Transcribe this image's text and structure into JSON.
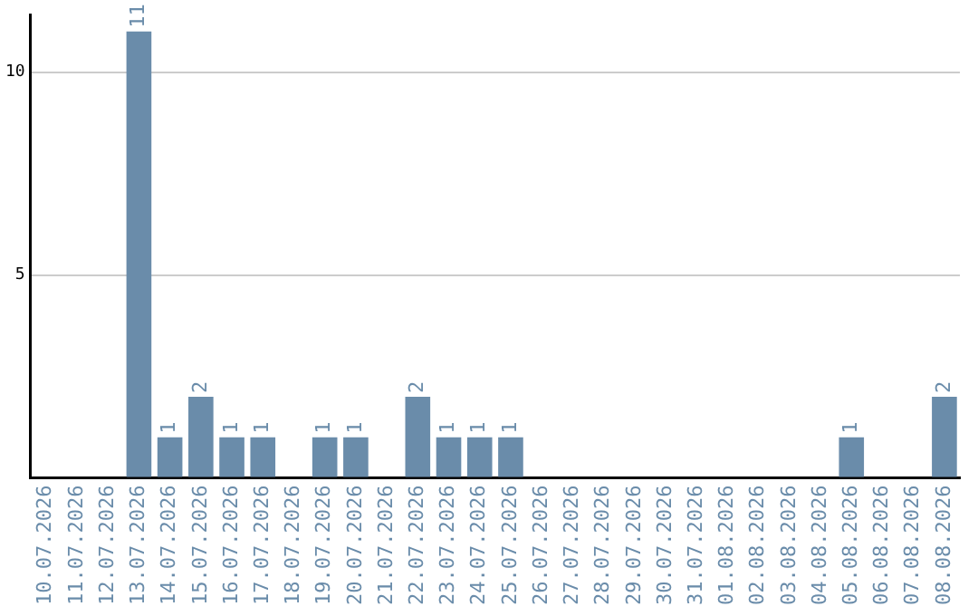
{
  "chart_data": {
    "type": "bar",
    "categories": [
      "10.07.2026",
      "11.07.2026",
      "12.07.2026",
      "13.07.2026",
      "14.07.2026",
      "15.07.2026",
      "16.07.2026",
      "17.07.2026",
      "18.07.2026",
      "19.07.2026",
      "20.07.2026",
      "21.07.2026",
      "22.07.2026",
      "23.07.2026",
      "24.07.2026",
      "25.07.2026",
      "26.07.2026",
      "27.07.2026",
      "28.07.2026",
      "29.07.2026",
      "30.07.2026",
      "31.07.2026",
      "01.08.2026",
      "02.08.2026",
      "03.08.2026",
      "04.08.2026",
      "05.08.2026",
      "06.08.2026",
      "07.08.2026",
      "08.08.2026"
    ],
    "values": [
      0,
      0,
      0,
      11,
      1,
      2,
      1,
      1,
      0,
      1,
      1,
      0,
      2,
      1,
      1,
      1,
      0,
      0,
      0,
      0,
      0,
      0,
      0,
      0,
      0,
      0,
      1,
      0,
      0,
      2
    ],
    "value_labels": [
      null,
      null,
      null,
      "11",
      "1",
      "2",
      "1",
      "1",
      null,
      "1",
      "1",
      null,
      "2",
      "1",
      "1",
      "1",
      null,
      null,
      null,
      null,
      null,
      null,
      null,
      null,
      null,
      null,
      "1",
      null,
      null,
      "2"
    ],
    "color": "#6a8caa",
    "ylim": [
      0,
      11.4
    ],
    "yticks": [
      {
        "value": 0,
        "label": null
      },
      5,
      10
    ],
    "grid": "y",
    "legend": false
  }
}
